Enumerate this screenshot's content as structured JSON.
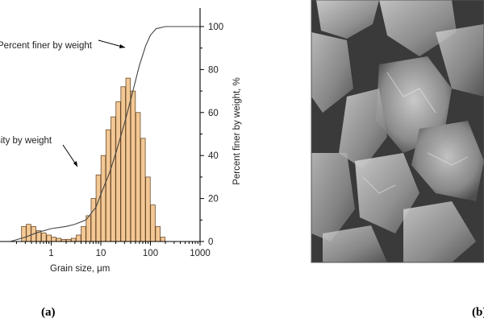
{
  "chart_data": {
    "type": "bar",
    "x_scale": "log",
    "xlabel": "Grain size, μm",
    "ylabel_right": "Percent finer by weight, %",
    "xlim": [
      0.1,
      1000
    ],
    "ylim": [
      0,
      100
    ],
    "x_ticks": [
      "1",
      "10",
      "100",
      "1000"
    ],
    "y_ticks": [
      "0",
      "20",
      "40",
      "60",
      "80",
      "100"
    ],
    "series": [
      {
        "name": "Density by weight",
        "type": "bar",
        "bin_centers": [
          0.28,
          0.35,
          0.44,
          0.56,
          0.71,
          0.9,
          1.12,
          1.41,
          1.78,
          2.24,
          2.82,
          3.55,
          4.47,
          5.62,
          7.08,
          8.91,
          11.2,
          14.1,
          17.8,
          22.4,
          28.2,
          35.5,
          44.7,
          56.2,
          70.8,
          89.1,
          112,
          141,
          178
        ],
        "values": [
          7,
          8,
          7,
          5,
          4,
          3,
          2,
          1.5,
          1,
          1,
          1.5,
          3,
          7,
          12,
          20,
          31,
          40,
          52,
          58,
          65,
          72,
          76,
          70,
          60,
          48,
          30,
          17,
          7,
          2
        ]
      },
      {
        "name": "Percent finer by weight",
        "type": "line",
        "x": [
          0.15,
          0.3,
          0.5,
          1,
          2,
          3,
          5,
          8,
          10,
          15,
          20,
          30,
          40,
          60,
          80,
          100,
          130,
          200,
          1000
        ],
        "y": [
          0,
          2,
          4,
          6,
          7,
          8,
          10,
          16,
          22,
          32,
          41,
          55,
          66,
          82,
          91,
          96,
          99,
          100,
          100
        ]
      }
    ],
    "annotations": [
      "Percent finer by weight",
      "Density by weight"
    ]
  },
  "captions": {
    "left": "(a)",
    "right": "(b)"
  },
  "micrograph": {
    "subject": "SEM micrograph of particles"
  }
}
